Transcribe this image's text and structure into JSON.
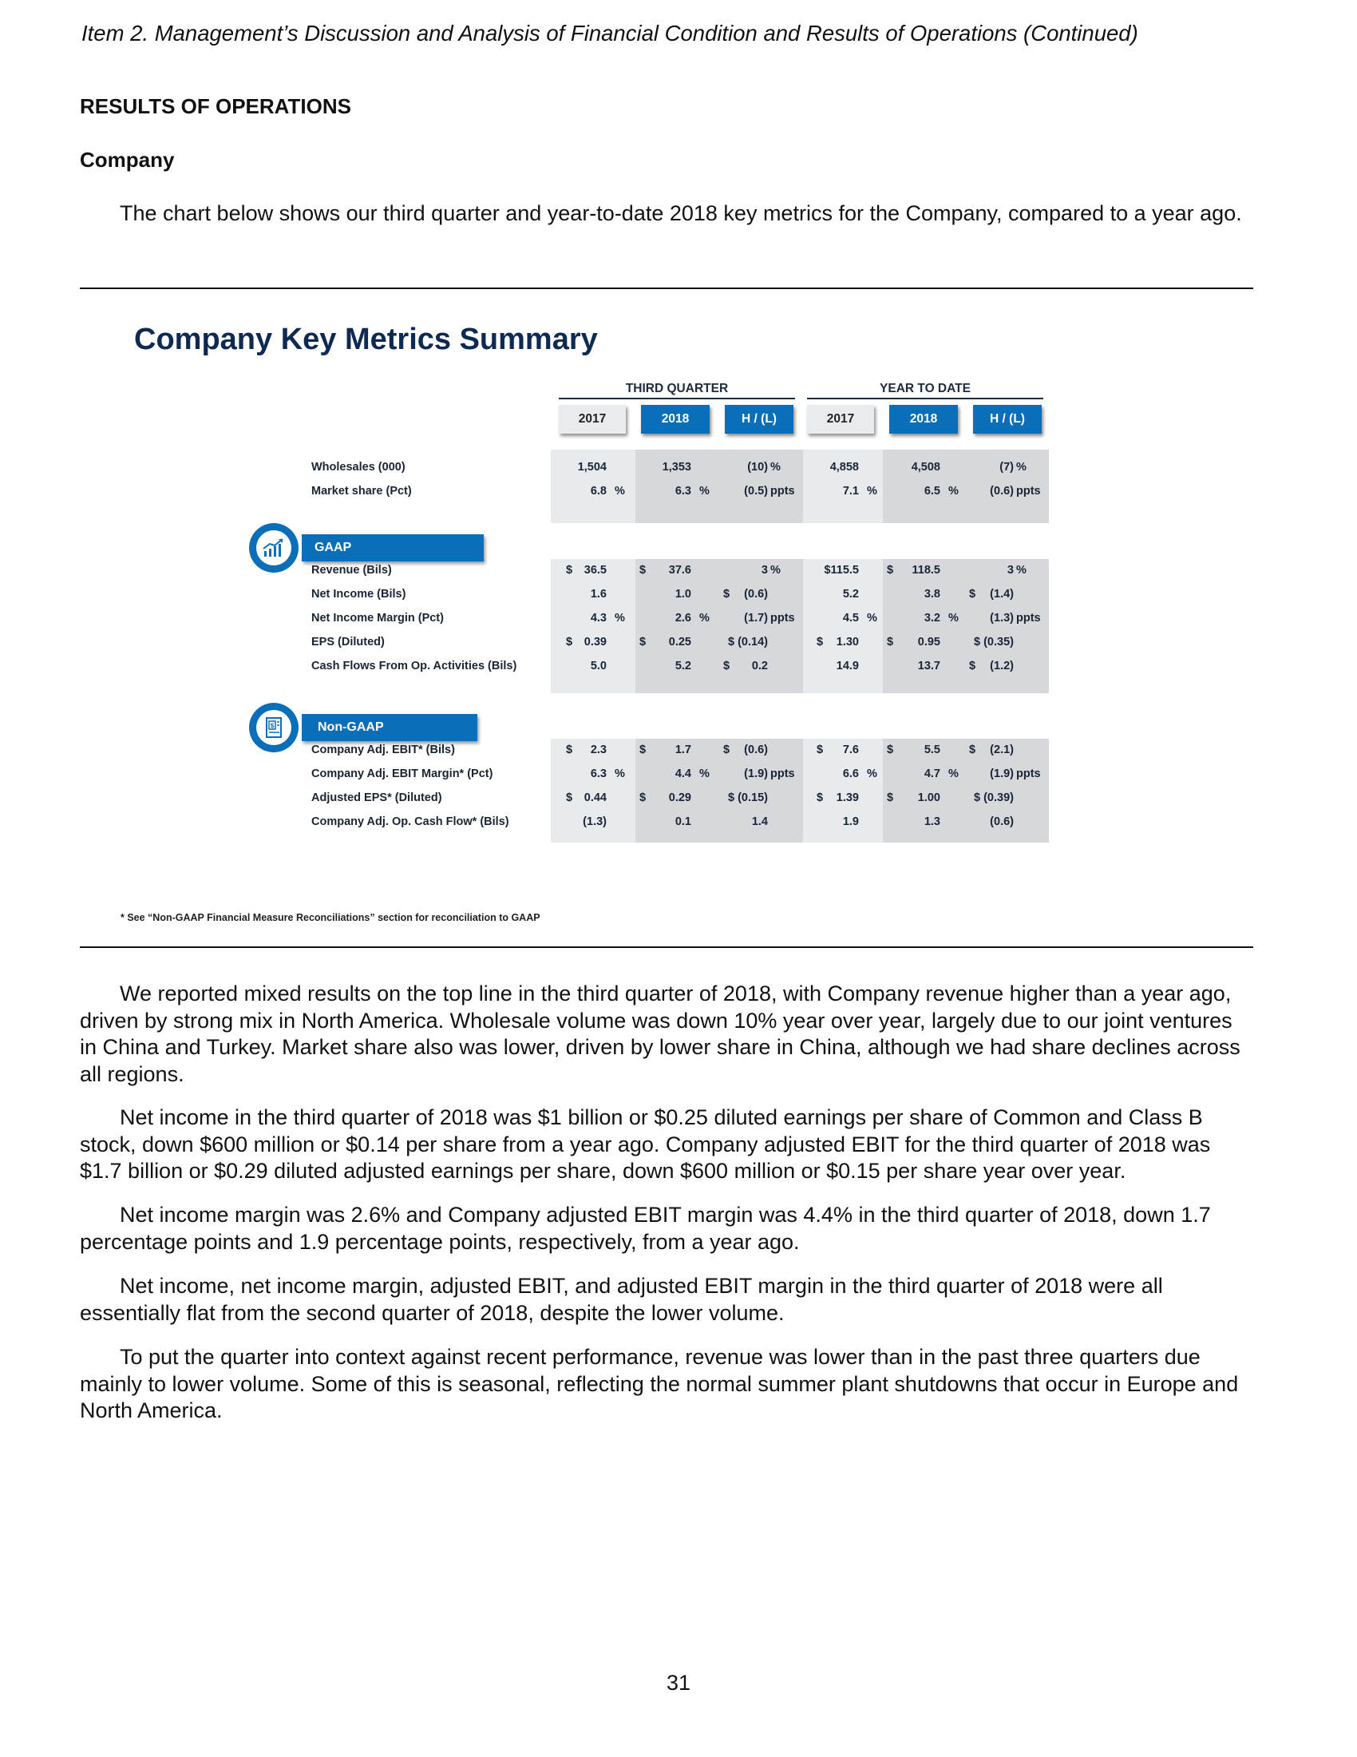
{
  "header": {
    "running_title": "Item 2.  Management’s Discussion and Analysis of Financial Condition and Results of Operations (Continued)"
  },
  "section_title": "RESULTS OF OPERATIONS",
  "subsection_title": "Company",
  "intro_paragraph": "The chart below shows our third quarter and year-to-date 2018 key metrics for the Company, compared to a year ago.",
  "panel": {
    "title": "Company Key Metrics Summary",
    "groups": {
      "third_quarter": "THIRD QUARTER",
      "year_to_date": "YEAR TO DATE"
    },
    "col_headers": [
      "2017",
      "2018",
      "H / (L)",
      "2017",
      "2018",
      "H / (L)"
    ],
    "sections": {
      "gaap": "GAAP",
      "non_gaap": "Non-GAAP"
    },
    "icons": {
      "gaap": "chart-growth-icon",
      "non_gaap": "document-dollar-icon"
    },
    "colors": {
      "accent_blue": "#0a6fb8",
      "title_navy": "#0e2a52"
    },
    "rows": [
      {
        "label": "Wholesales (000)",
        "cells": [
          {
            "v": "1,504"
          },
          {
            "v": "1,353"
          },
          {
            "v": "(10)",
            "u": "%"
          },
          {
            "v": "4,858"
          },
          {
            "v": "4,508"
          },
          {
            "v": "(7)",
            "u": "%"
          }
        ]
      },
      {
        "label": "Market share (Pct)",
        "cells": [
          {
            "v": "6.8",
            "u": "%"
          },
          {
            "v": "6.3",
            "u": "%"
          },
          {
            "v": "(0.5)",
            "u": "ppts"
          },
          {
            "v": "7.1",
            "u": "%"
          },
          {
            "v": "6.5",
            "u": "%"
          },
          {
            "v": "(0.6)",
            "u": "ppts"
          }
        ]
      },
      {
        "label": "Revenue (Bils)",
        "cells": [
          {
            "d": "$",
            "v": "36.5"
          },
          {
            "d": "$",
            "v": "37.6"
          },
          {
            "v": "3",
            "u": "%"
          },
          {
            "v": "$115.5"
          },
          {
            "d": "$",
            "v": "118.5"
          },
          {
            "v": "3",
            "u": "%"
          }
        ]
      },
      {
        "label": "Net Income (Bils)",
        "cells": [
          {
            "v": "1.6"
          },
          {
            "v": "1.0"
          },
          {
            "d": "$",
            "v": "(0.6)"
          },
          {
            "v": "5.2"
          },
          {
            "v": "3.8"
          },
          {
            "d": "$",
            "v": "(1.4)"
          }
        ]
      },
      {
        "label": "Net Income Margin (Pct)",
        "cells": [
          {
            "v": "4.3",
            "u": "%"
          },
          {
            "v": "2.6",
            "u": "%"
          },
          {
            "v": "(1.7)",
            "u": "ppts"
          },
          {
            "v": "4.5",
            "u": "%"
          },
          {
            "v": "3.2",
            "u": "%"
          },
          {
            "v": "(1.3)",
            "u": "ppts"
          }
        ]
      },
      {
        "label": "EPS (Diluted)",
        "cells": [
          {
            "d": "$",
            "v": "0.39"
          },
          {
            "d": "$",
            "v": "0.25"
          },
          {
            "v": "$ (0.14)"
          },
          {
            "d": "$",
            "v": "1.30"
          },
          {
            "d": "$",
            "v": "0.95"
          },
          {
            "v": "$ (0.35)"
          }
        ]
      },
      {
        "label": "Cash Flows From Op. Activities (Bils)",
        "cells": [
          {
            "v": "5.0"
          },
          {
            "v": "5.2"
          },
          {
            "d": "$",
            "v": "0.2"
          },
          {
            "v": "14.9"
          },
          {
            "v": "13.7"
          },
          {
            "d": "$",
            "v": "(1.2)"
          }
        ]
      },
      {
        "label": "Company Adj. EBIT* (Bils)",
        "cells": [
          {
            "d": "$",
            "v": "2.3"
          },
          {
            "d": "$",
            "v": "1.7"
          },
          {
            "d": "$",
            "v": "(0.6)"
          },
          {
            "d": "$",
            "v": "7.6"
          },
          {
            "d": "$",
            "v": "5.5"
          },
          {
            "d": "$",
            "v": "(2.1)"
          }
        ]
      },
      {
        "label": "Company Adj. EBIT Margin* (Pct)",
        "cells": [
          {
            "v": "6.3",
            "u": "%"
          },
          {
            "v": "4.4",
            "u": "%"
          },
          {
            "v": "(1.9)",
            "u": "ppts"
          },
          {
            "v": "6.6",
            "u": "%"
          },
          {
            "v": "4.7",
            "u": "%"
          },
          {
            "v": "(1.9)",
            "u": "ppts"
          }
        ]
      },
      {
        "label": "Adjusted EPS* (Diluted)",
        "cells": [
          {
            "d": "$",
            "v": "0.44"
          },
          {
            "d": "$",
            "v": "0.29"
          },
          {
            "v": "$ (0.15)"
          },
          {
            "d": "$",
            "v": "1.39"
          },
          {
            "d": "$",
            "v": "1.00"
          },
          {
            "v": "$ (0.39)"
          }
        ]
      },
      {
        "label": "Company Adj. Op. Cash Flow* (Bils)",
        "cells": [
          {
            "v": "(1.3)"
          },
          {
            "v": "0.1"
          },
          {
            "v": "1.4"
          },
          {
            "v": "1.9"
          },
          {
            "v": "1.3"
          },
          {
            "v": "(0.6)"
          }
        ]
      }
    ],
    "footnote": "* See “Non-GAAP Financial Measure Reconciliations” section for reconciliation to GAAP"
  },
  "paragraphs": [
    "We reported mixed results on the top line in the third quarter of 2018, with Company revenue higher than a year ago, driven by strong mix in North America.  Wholesale volume was down 10% year over year, largely due to our joint ventures in China and Turkey.  Market share also was lower, driven by lower share in China, although we had share declines across all regions.",
    "Net income in the third quarter of 2018 was $1 billion or $0.25 diluted earnings per share of Common and Class B stock, down $600 million or $0.14 per share from a year ago.  Company adjusted EBIT for the third quarter of 2018 was $1.7 billion or $0.29 diluted adjusted earnings per share, down $600 million or $0.15 per share year over year.",
    "Net income margin was 2.6% and Company adjusted EBIT margin was 4.4% in the third quarter of 2018, down 1.7 percentage points and 1.9 percentage points, respectively, from a year ago.",
    "Net income, net income margin, adjusted EBIT, and adjusted EBIT margin in the third quarter of 2018 were all essentially flat from the second quarter of 2018, despite the lower volume.",
    "To put the quarter into context against recent performance, revenue was lower than in the past three quarters due mainly to lower volume.  Some of this is seasonal, reflecting the normal summer plant shutdowns that occur in Europe and North America."
  ],
  "page_number": "31"
}
